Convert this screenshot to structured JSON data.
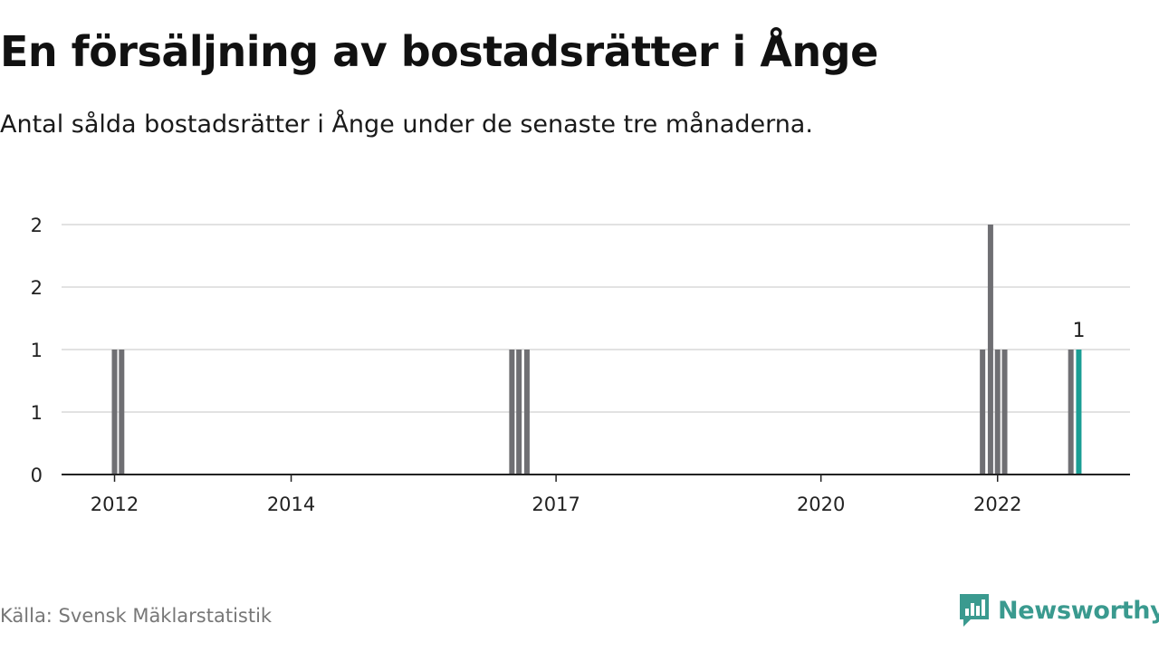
{
  "header": {
    "title": "En försäljning av bostadsrätter i Ånge",
    "subtitle": "Antal sålda bostadsrätter i Ånge under de senaste tre månaderna."
  },
  "footer": {
    "source": "Källa: Svensk Mäklarstatistik",
    "brand": "Newsworthy"
  },
  "colors": {
    "bar": "#6f6f73",
    "highlight": "#1a9e94",
    "grid": "#d9d9d9",
    "axis": "#222222",
    "brand": "#3a9a8f"
  },
  "icons": {
    "brand_logo": "newsworthy-logo-icon"
  },
  "chart_data": {
    "type": "bar",
    "title": "En försäljning av bostadsrätter i Ånge",
    "subtitle": "Antal sålda bostadsrätter i Ånge under de senaste tre månaderna.",
    "x_axis": {
      "ticks": [
        "2012",
        "2014",
        "2017",
        "2020",
        "2022"
      ],
      "tick_positions": [
        2012.0,
        2014.0,
        2017.0,
        2020.0,
        2022.0
      ],
      "range": [
        2011.4,
        2023.5
      ]
    },
    "y_axis": {
      "range": [
        0,
        2
      ],
      "tick_values": [
        0,
        0.5,
        1,
        1.5,
        2
      ],
      "tick_labels": [
        "0",
        "1",
        "1",
        "2",
        "2"
      ]
    },
    "grid": true,
    "bars": [
      {
        "period": "2012-Q1",
        "x": 2012.0,
        "value": 1,
        "highlight": false
      },
      {
        "period": "2012-Q2",
        "x": 2012.08,
        "value": 1,
        "highlight": false
      },
      {
        "period": "2016-Q3",
        "x": 2016.5,
        "value": 1,
        "highlight": false
      },
      {
        "period": "2016-Q4",
        "x": 2016.58,
        "value": 1,
        "highlight": false
      },
      {
        "period": "2017-Q1",
        "x": 2016.67,
        "value": 1,
        "highlight": false
      },
      {
        "period": "2021-Q3",
        "x": 2021.83,
        "value": 1,
        "highlight": false
      },
      {
        "period": "2021-Q4",
        "x": 2021.92,
        "value": 2,
        "highlight": false
      },
      {
        "period": "2022-Q1",
        "x": 2022.0,
        "value": 1,
        "highlight": false
      },
      {
        "period": "2022-Q2",
        "x": 2022.08,
        "value": 1,
        "highlight": false
      },
      {
        "period": "2022-Q4",
        "x": 2022.83,
        "value": 1,
        "highlight": false
      },
      {
        "period": "2023-Q1",
        "x": 2022.92,
        "value": 1,
        "highlight": true,
        "label": "1"
      }
    ]
  }
}
